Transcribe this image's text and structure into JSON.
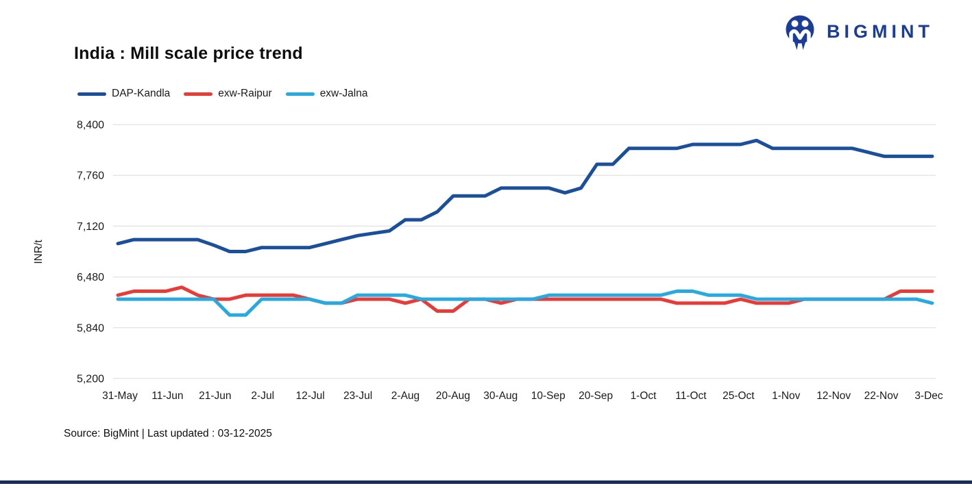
{
  "header": {
    "title": "India : Mill scale price trend",
    "logo_text": "BIGMINT"
  },
  "footer": {
    "source_text": "Source: BigMint | Last updated : 03-12-2025"
  },
  "colors": {
    "brand_navy": "#1B3C97",
    "bottom_bar": "#1A2C5B",
    "gridline": "#e5e5e5",
    "tick_text": "#1a1a1a"
  },
  "chart_data": {
    "type": "line",
    "title": "India : Mill scale price trend",
    "xlabel": "",
    "ylabel": "INR/t",
    "ylim": [
      5200,
      8400
    ],
    "yticks": [
      5200,
      5840,
      6480,
      7120,
      7760,
      8400
    ],
    "grid": "horizontal",
    "legend_position": "top-left",
    "x_labels": [
      "31-May",
      "11-Jun",
      "21-Jun",
      "2-Jul",
      "12-Jul",
      "23-Jul",
      "2-Aug",
      "20-Aug",
      "30-Aug",
      "10-Sep",
      "20-Sep",
      "1-Oct",
      "11-Oct",
      "25-Oct",
      "1-Nov",
      "12-Nov",
      "22-Nov",
      "3-Dec"
    ],
    "points_per_label_gap": 3,
    "series": [
      {
        "name": "DAP-Kandla",
        "color": "#1A4F9D",
        "values": [
          6900,
          6950,
          6950,
          6950,
          6950,
          6950,
          6880,
          6800,
          6800,
          6850,
          6850,
          6850,
          6850,
          6900,
          6950,
          7000,
          7030,
          7060,
          7200,
          7200,
          7300,
          7500,
          7500,
          7500,
          7600,
          7600,
          7600,
          7600,
          7540,
          7600,
          7900,
          7900,
          8100,
          8100,
          8100,
          8100,
          8150,
          8150,
          8150,
          8150,
          8200,
          8100,
          8100,
          8100,
          8100,
          8100,
          8100,
          8050,
          8000,
          8000,
          8000,
          8000
        ]
      },
      {
        "name": "exw-Raipur",
        "color": "#EA3A36",
        "values": [
          6250,
          6300,
          6300,
          6300,
          6350,
          6250,
          6200,
          6200,
          6250,
          6250,
          6250,
          6250,
          6200,
          6150,
          6150,
          6200,
          6200,
          6200,
          6150,
          6200,
          6050,
          6050,
          6200,
          6200,
          6150,
          6200,
          6200,
          6200,
          6200,
          6200,
          6200,
          6200,
          6200,
          6200,
          6200,
          6150,
          6150,
          6150,
          6150,
          6200,
          6150,
          6150,
          6150,
          6200,
          6200,
          6200,
          6200,
          6200,
          6200,
          6300,
          6300,
          6300
        ]
      },
      {
        "name": "exw-Jalna",
        "color": "#27AAE1",
        "values": [
          6200,
          6200,
          6200,
          6200,
          6200,
          6200,
          6200,
          6000,
          6000,
          6200,
          6200,
          6200,
          6200,
          6150,
          6150,
          6250,
          6250,
          6250,
          6250,
          6200,
          6200,
          6200,
          6200,
          6200,
          6200,
          6200,
          6200,
          6250,
          6250,
          6250,
          6250,
          6250,
          6250,
          6250,
          6250,
          6300,
          6300,
          6250,
          6250,
          6250,
          6200,
          6200,
          6200,
          6200,
          6200,
          6200,
          6200,
          6200,
          6200,
          6200,
          6200,
          6150
        ]
      }
    ]
  }
}
